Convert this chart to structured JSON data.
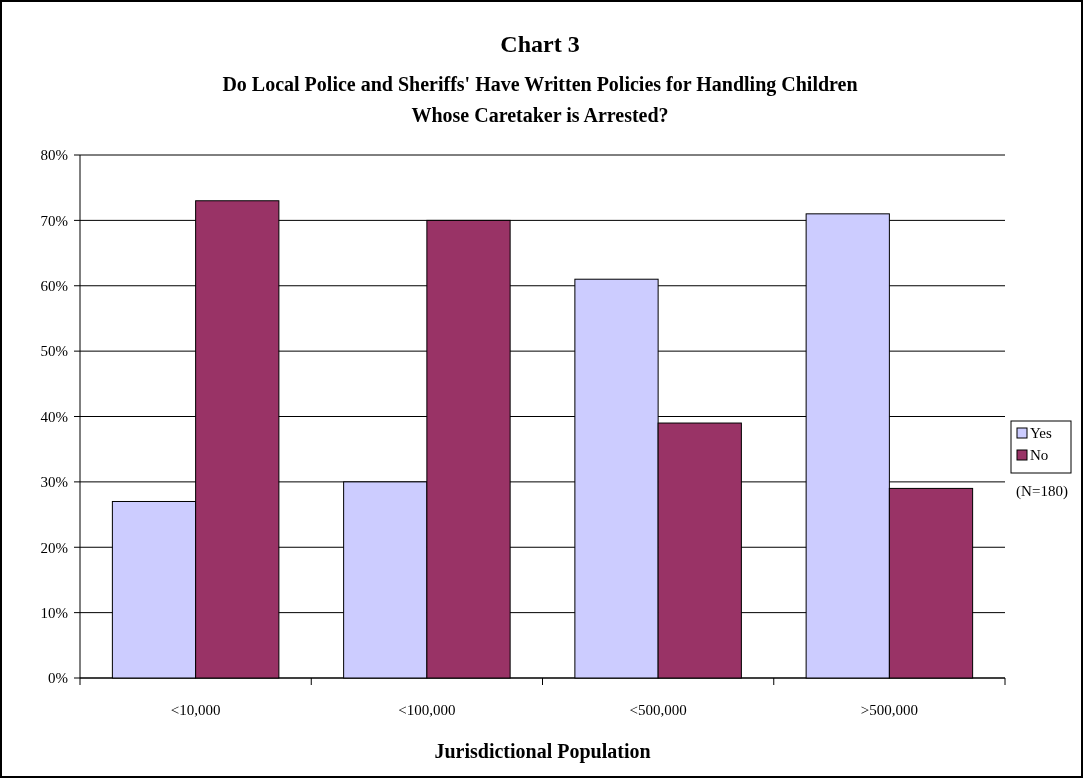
{
  "chart_data": {
    "type": "bar",
    "title": "Chart 3",
    "subtitle": "Do Local Police and Sheriffs' Have Written Policies for Handling Children Whose Caretaker is Arrested?",
    "xlabel": "Jurisdictional Population",
    "categories": [
      "<10,000",
      "<100,000",
      "<500,000",
      ">500,000"
    ],
    "series": [
      {
        "name": "Yes",
        "color": "#ccccff",
        "values": [
          27,
          30,
          61,
          71
        ]
      },
      {
        "name": "No",
        "color": "#993366",
        "values": [
          73,
          70,
          39,
          29
        ]
      }
    ],
    "ylim": [
      0,
      80
    ],
    "yticks": [
      {
        "value": 0,
        "label": "0%"
      },
      {
        "value": 10,
        "label": "10%"
      },
      {
        "value": 20,
        "label": "20%"
      },
      {
        "value": 30,
        "label": "30%"
      },
      {
        "value": 40,
        "label": "40%"
      },
      {
        "value": 50,
        "label": "50%"
      },
      {
        "value": 60,
        "label": "60%"
      },
      {
        "value": 70,
        "label": "70%"
      },
      {
        "value": 80,
        "label": "80%"
      }
    ],
    "grid": "y",
    "legend": "right",
    "annotations": [
      "(N=180)"
    ]
  }
}
